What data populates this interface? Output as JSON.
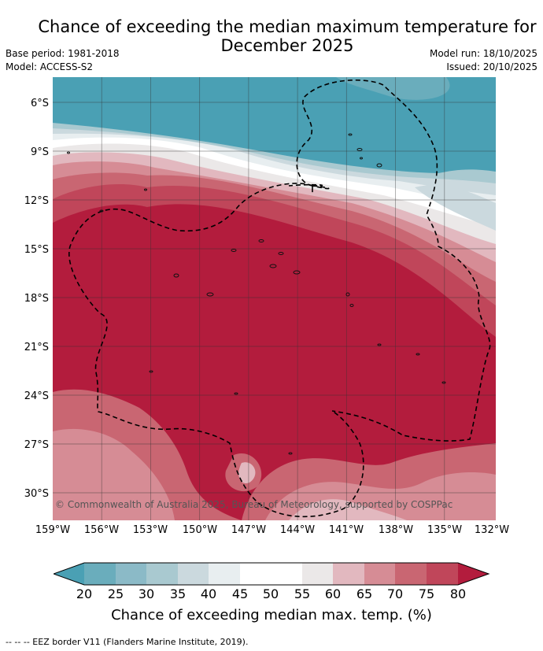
{
  "title_line1": "Chance of exceeding the median maximum temperature for",
  "title_line2": "December 2025",
  "meta": {
    "base_period": "Base period: 1981-2018",
    "model": "Model: ACCESS-S2",
    "model_run": "Model run: 18/10/2025",
    "issued": "Issued: 20/10/2025"
  },
  "map": {
    "lat_labels": [
      "6°S",
      "9°S",
      "12°S",
      "15°S",
      "18°S",
      "21°S",
      "24°S",
      "27°S",
      "30°S"
    ],
    "lon_labels": [
      "159°W",
      "156°W",
      "153°W",
      "150°W",
      "147°W",
      "144°W",
      "141°W",
      "138°W",
      "135°W",
      "132°W"
    ],
    "copyright": "© Commonwealth of Australia 2025, Bureau of Meteorology, supported by COSPPac"
  },
  "legend": {
    "tick_labels": [
      "20",
      "25",
      "30",
      "35",
      "40",
      "45",
      "50",
      "55",
      "60",
      "65",
      "70",
      "75",
      "80"
    ],
    "title": "Chance of exceeding median max. temp. (%)",
    "colors": [
      "#4aa0b4",
      "#6aadbc",
      "#8bbac7",
      "#a9c9d0",
      "#cbd9de",
      "#e8eef0",
      "#ffffff",
      "#ffffff",
      "#ebe8e8",
      "#e2b8bf",
      "#d68c95",
      "#c96672",
      "#c0465a",
      "#b31c3d"
    ]
  },
  "footnote": "--  --  -- EEZ border V11 (Flanders Marine Institute, 2019)."
}
